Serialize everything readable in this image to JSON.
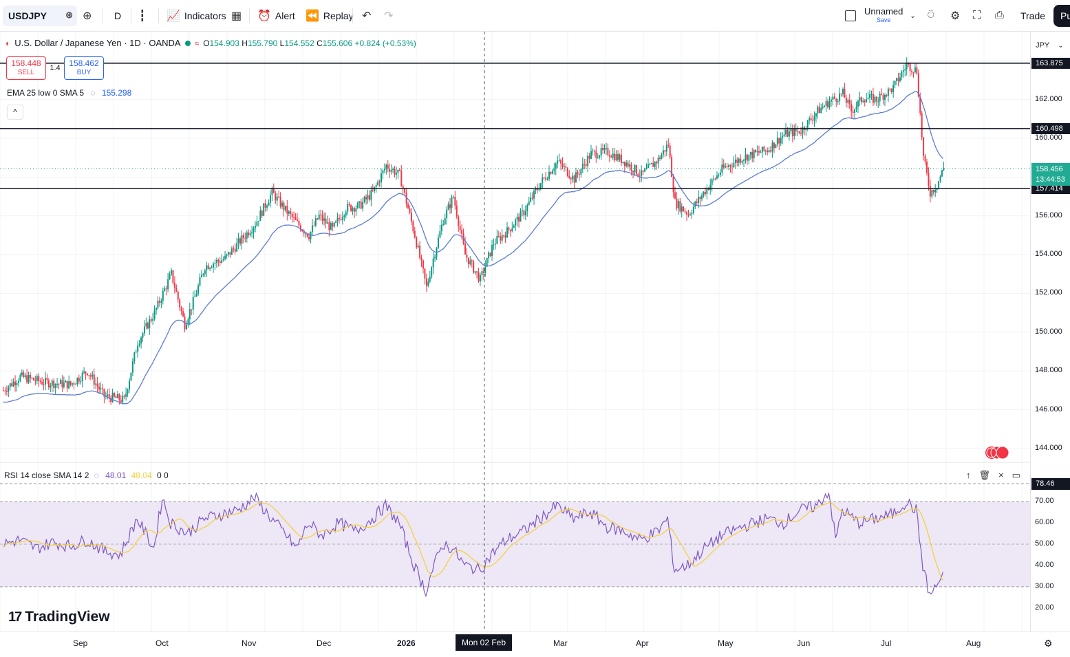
{
  "toolbar": {
    "symbol": "USDJPY",
    "interval": "D",
    "indicators_label": "Indicators",
    "alert_label": "Alert",
    "replay_label": "Replay",
    "layout_name": "Unnamed",
    "save_label": "Save",
    "trade_label": "Trade",
    "publish_label": "Pu"
  },
  "legend": {
    "title": "U.S. Dollar / Japanese Yen · 1D · OANDA",
    "open_k": "O",
    "open": "154.903",
    "high_k": "H",
    "high": "155.790",
    "low_k": "L",
    "low": "154.552",
    "close_k": "C",
    "close": "155.606",
    "change": "+0.824 (+0.53%)"
  },
  "trade_panel": {
    "sell_price": "158.448",
    "sell_label": "SELL",
    "spread": "1.4",
    "buy_price": "158.462",
    "buy_label": "BUY"
  },
  "ema_legend": {
    "label": "EMA 25 low 0 SMA 5",
    "value": "155.298"
  },
  "rsi_legend": {
    "label": "RSI 14 close SMA 14 2",
    "rsi": "48.01",
    "sma": "48.04",
    "extra": "0 0"
  },
  "price_scale": {
    "currency": "JPY",
    "ticks": [
      "162.000",
      "160.000",
      "156.000",
      "154.000",
      "152.000",
      "150.000",
      "148.000",
      "146.000",
      "144.000"
    ],
    "levels": [
      "163.875",
      "160.498",
      "157.414"
    ],
    "current_price": "158.456",
    "countdown": "13:44:53"
  },
  "rsi_scale": {
    "ticks": [
      "70.00",
      "60.00",
      "50.00",
      "40.00",
      "30.00",
      "20.00"
    ],
    "tag": "78.46"
  },
  "time_scale": {
    "labels": [
      "Sep",
      "Oct",
      "Nov",
      "Dec",
      "2026",
      "Mar",
      "Apr",
      "May",
      "Jun",
      "Jul",
      "Aug"
    ],
    "crosshair": "Mon 02 Feb '26"
  },
  "branding": {
    "logo_text": "TradingView"
  },
  "colors": {
    "up": "#089981",
    "down": "#f23645",
    "ema": "#5b7bd5",
    "rsi": "#7e57c2",
    "rsi_sma": "#f5d142",
    "rsi_band": "#ede7f6"
  },
  "chart_data": {
    "type": "candlestick",
    "price_ylim": [
      143.5,
      165.5
    ],
    "rsi_ylim": [
      18,
      82
    ],
    "horizontal_levels": [
      163.875,
      160.498,
      157.414
    ],
    "anchors": [
      [
        0,
        147.0
      ],
      [
        10,
        147.7
      ],
      [
        25,
        147.4
      ],
      [
        40,
        147.3
      ],
      [
        50,
        148.0
      ],
      [
        60,
        146.7
      ],
      [
        72,
        146.5
      ],
      [
        80,
        149.5
      ],
      [
        90,
        151.0
      ],
      [
        100,
        153.0
      ],
      [
        108,
        150.4
      ],
      [
        114,
        151.8
      ],
      [
        120,
        153.4
      ],
      [
        132,
        153.8
      ],
      [
        140,
        154.6
      ],
      [
        150,
        155.6
      ],
      [
        160,
        157.2
      ],
      [
        168,
        156.3
      ],
      [
        175,
        155.6
      ],
      [
        182,
        155.0
      ],
      [
        188,
        156.0
      ],
      [
        196,
        155.3
      ],
      [
        204,
        156.4
      ],
      [
        212,
        156.5
      ],
      [
        220,
        157.2
      ],
      [
        228,
        158.6
      ],
      [
        236,
        158.1
      ],
      [
        245,
        155.0
      ],
      [
        252,
        152.3
      ],
      [
        256,
        153.8
      ],
      [
        262,
        155.8
      ],
      [
        268,
        157.0
      ],
      [
        275,
        154.0
      ],
      [
        284,
        152.7
      ],
      [
        292,
        154.6
      ],
      [
        300,
        155.2
      ],
      [
        310,
        156.2
      ],
      [
        320,
        157.7
      ],
      [
        330,
        158.8
      ],
      [
        340,
        157.9
      ],
      [
        350,
        159.2
      ],
      [
        360,
        159.3
      ],
      [
        370,
        158.8
      ],
      [
        380,
        158.1
      ],
      [
        390,
        158.9
      ],
      [
        396,
        159.7
      ],
      [
        400,
        156.7
      ],
      [
        408,
        156.1
      ],
      [
        418,
        157.3
      ],
      [
        428,
        158.4
      ],
      [
        440,
        159.0
      ],
      [
        455,
        159.4
      ],
      [
        465,
        160.2
      ],
      [
        475,
        160.4
      ],
      [
        485,
        161.4
      ],
      [
        492,
        161.9
      ],
      [
        500,
        162.3
      ],
      [
        505,
        161.4
      ],
      [
        512,
        162.1
      ],
      [
        520,
        162.0
      ],
      [
        530,
        162.6
      ],
      [
        538,
        163.8
      ],
      [
        544,
        163.5
      ],
      [
        548,
        159.0
      ],
      [
        552,
        157.2
      ],
      [
        556,
        157.6
      ],
      [
        560,
        158.46
      ]
    ],
    "rsi_anchors": [
      [
        0,
        50
      ],
      [
        10,
        52
      ],
      [
        20,
        48
      ],
      [
        30,
        51
      ],
      [
        40,
        49
      ],
      [
        50,
        52
      ],
      [
        60,
        47
      ],
      [
        70,
        45
      ],
      [
        80,
        62
      ],
      [
        90,
        48
      ],
      [
        95,
        72
      ],
      [
        100,
        60
      ],
      [
        110,
        55
      ],
      [
        120,
        62
      ],
      [
        130,
        64
      ],
      [
        140,
        66
      ],
      [
        150,
        72
      ],
      [
        160,
        62
      ],
      [
        168,
        55
      ],
      [
        175,
        48
      ],
      [
        182,
        60
      ],
      [
        190,
        54
      ],
      [
        200,
        60
      ],
      [
        210,
        56
      ],
      [
        220,
        62
      ],
      [
        228,
        68
      ],
      [
        236,
        60
      ],
      [
        245,
        40
      ],
      [
        252,
        28
      ],
      [
        256,
        38
      ],
      [
        262,
        50
      ],
      [
        268,
        48
      ],
      [
        275,
        40
      ],
      [
        284,
        38
      ],
      [
        292,
        46
      ],
      [
        300,
        52
      ],
      [
        310,
        56
      ],
      [
        320,
        62
      ],
      [
        330,
        68
      ],
      [
        340,
        62
      ],
      [
        350,
        65
      ],
      [
        360,
        58
      ],
      [
        370,
        56
      ],
      [
        380,
        52
      ],
      [
        390,
        56
      ],
      [
        396,
        62
      ],
      [
        400,
        38
      ],
      [
        408,
        40
      ],
      [
        418,
        48
      ],
      [
        428,
        54
      ],
      [
        440,
        58
      ],
      [
        455,
        62
      ],
      [
        465,
        60
      ],
      [
        475,
        66
      ],
      [
        485,
        68
      ],
      [
        492,
        75
      ],
      [
        496,
        52
      ],
      [
        500,
        66
      ],
      [
        510,
        60
      ],
      [
        520,
        62
      ],
      [
        530,
        64
      ],
      [
        538,
        70
      ],
      [
        544,
        66
      ],
      [
        548,
        40
      ],
      [
        552,
        26
      ],
      [
        556,
        30
      ],
      [
        560,
        36
      ]
    ]
  }
}
